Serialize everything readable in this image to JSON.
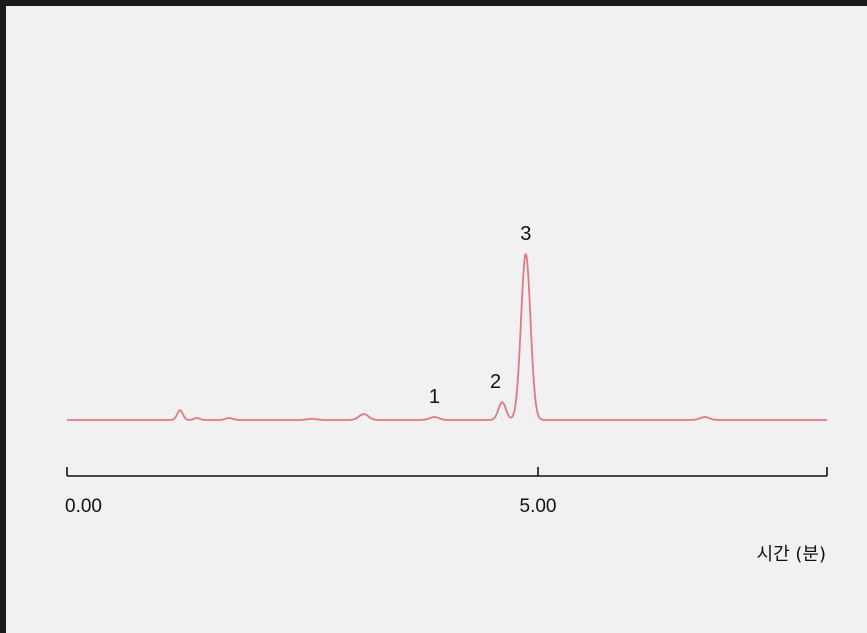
{
  "chart_data": {
    "type": "line",
    "title": "",
    "xlabel": "시간 (분)",
    "ylabel": "",
    "xlim": [
      0,
      8
    ],
    "x_ticks": [
      {
        "value": 0,
        "label": "0.00"
      },
      {
        "value": 5,
        "label": "5.00"
      }
    ],
    "line_color": "#e07a82",
    "axis_color": "#111111",
    "grid": false,
    "baseline": 0,
    "ylim": [
      0,
      170
    ],
    "series": [
      {
        "peaks": [
          {
            "x": 1.2,
            "height": 10,
            "width": 0.03
          },
          {
            "x": 1.38,
            "height": 2,
            "width": 0.03
          },
          {
            "x": 1.72,
            "height": 2,
            "width": 0.04
          },
          {
            "x": 2.6,
            "height": 1.2,
            "width": 0.05
          },
          {
            "x": 3.15,
            "height": 6,
            "width": 0.05
          },
          {
            "x": 3.9,
            "height": 3,
            "width": 0.05
          },
          {
            "x": 4.62,
            "height": 18,
            "width": 0.04
          },
          {
            "x": 4.87,
            "height": 168,
            "width": 0.05
          },
          {
            "x": 6.77,
            "height": 3,
            "width": 0.05
          }
        ]
      }
    ],
    "annotations": [
      {
        "text": "1",
        "x": 3.9
      },
      {
        "text": "2",
        "x": 4.55
      },
      {
        "text": "3",
        "x": 4.87
      }
    ]
  }
}
